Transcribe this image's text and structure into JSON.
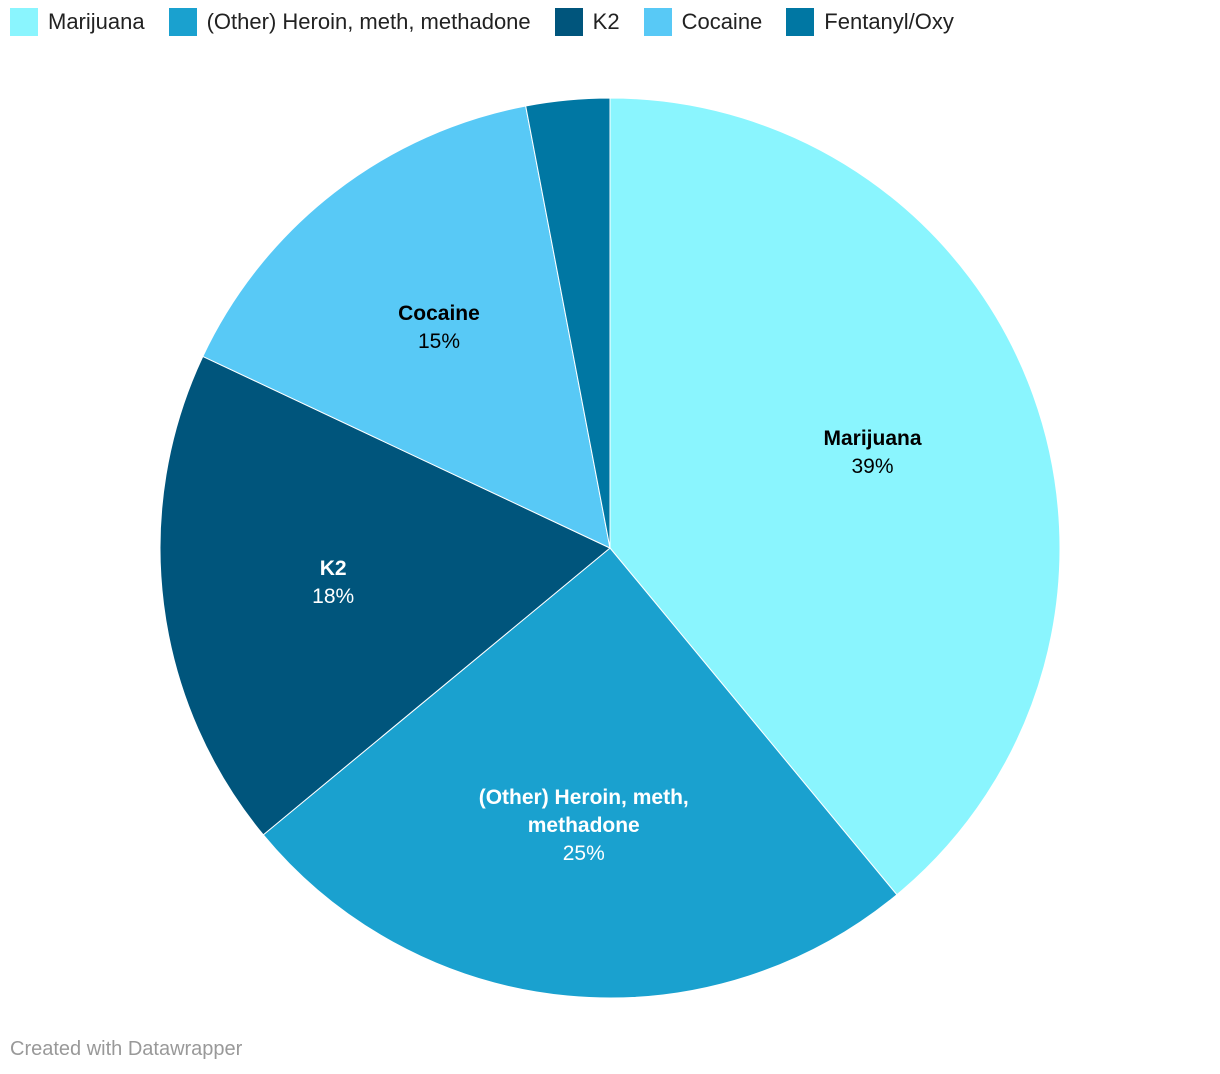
{
  "chart_data": {
    "type": "pie",
    "categories": [
      "Marijuana",
      "(Other) Heroin, meth, methadone",
      "K2",
      "Cocaine",
      "Fentanyl/Oxy"
    ],
    "values": [
      39,
      25,
      18,
      15,
      3
    ],
    "value_labels": [
      "39%",
      "25%",
      "18%",
      "15%",
      null
    ],
    "colors": [
      "#8af5fe",
      "#1aa1cf",
      "#00557c",
      "#58c9f6",
      "#0077a3"
    ],
    "label_colors": [
      "#000000",
      "#ffffff",
      "#ffffff",
      "#000000",
      "#ffffff"
    ],
    "credit": "Created with Datawrapper"
  }
}
